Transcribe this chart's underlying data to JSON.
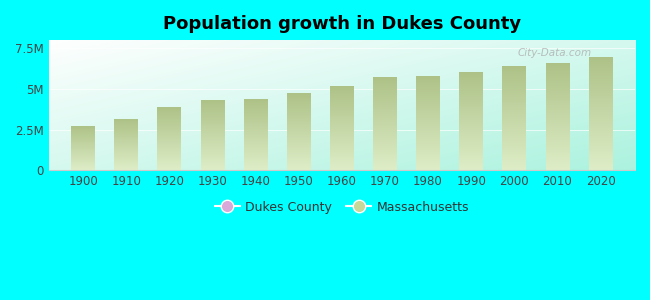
{
  "title": "Population growth in Dukes County",
  "years": [
    1900,
    1910,
    1920,
    1930,
    1940,
    1950,
    1960,
    1970,
    1980,
    1990,
    2000,
    2010,
    2020
  ],
  "massachusetts_values": [
    2700000,
    3100000,
    3850000,
    4250000,
    4320000,
    4690000,
    5150000,
    5690000,
    5740000,
    6020000,
    6350000,
    6550000,
    6900000
  ],
  "bar_color": "#b8c98a",
  "bar_color_light": "#ddeec8",
  "background_color": "#00ffff",
  "plot_bg_topleft": "#ffffff",
  "plot_bg_bottomright": "#aaffd8",
  "ytick_labels": [
    "0",
    "2.5M",
    "5M",
    "7.5M"
  ],
  "ytick_values": [
    0,
    2500000,
    5000000,
    7500000
  ],
  "ylim": [
    0,
    8000000
  ],
  "watermark": "City-Data.com",
  "legend_dukes_color": "#d8a8d8",
  "legend_mass_color": "#c8d898",
  "bar_width": 5.5
}
